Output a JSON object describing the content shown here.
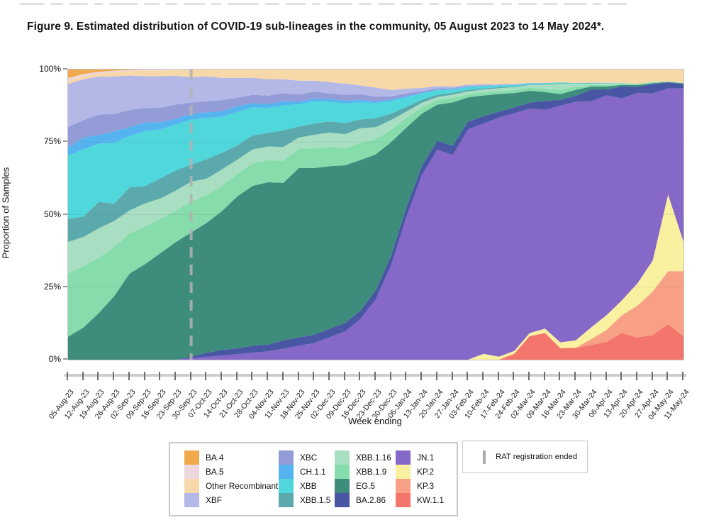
{
  "title": "Figure 9. Estimated distribution of COVID-19 sub-lineages in the community, 05 August 2023 to 14 May 2024*.",
  "annotation_legend": {
    "label": "RAT registration ended",
    "marker_color": "#ababab"
  },
  "chart_data": {
    "type": "area",
    "stacked": true,
    "normalized_to_percent": true,
    "title": "",
    "xlabel": "Week ending",
    "ylabel": "Proportion of Samples",
    "ylim": [
      0,
      100
    ],
    "y_ticks": [
      {
        "value": 0,
        "label": "0%"
      },
      {
        "value": 25,
        "label": "25%"
      },
      {
        "value": 50,
        "label": "50%"
      },
      {
        "value": 75,
        "label": "75%"
      },
      {
        "value": 100,
        "label": "100%"
      }
    ],
    "gridlines": [
      25,
      50,
      75
    ],
    "annotation": {
      "label": "RAT registration ended",
      "x_category": "30-Sep-23",
      "style": "dashed-vertical-line",
      "color": "#b3b3b3"
    },
    "categories": [
      "05-Aug-23",
      "12-Aug-23",
      "19-Aug-23",
      "26-Aug-23",
      "02-Sep-23",
      "09-Sep-23",
      "16-Sep-23",
      "23-Sep-23",
      "30-Sep-23",
      "07-Oct-23",
      "14-Oct-23",
      "21-Oct-23",
      "28-Oct-23",
      "04-Nov-23",
      "11-Nov-23",
      "18-Nov-23",
      "25-Nov-23",
      "02-Dec-23",
      "09-Dec-23",
      "16-Dec-23",
      "23-Dec-23",
      "30-Dec-23",
      "06-Jan-24",
      "13-Jan-24",
      "20-Jan-24",
      "27-Jan-24",
      "03-Feb-24",
      "10-Feb-24",
      "17-Feb-24",
      "24-Feb-24",
      "02-Mar-24",
      "09-Mar-24",
      "16-Mar-24",
      "23-Mar-24",
      "30-Mar-24",
      "06-Apr-24",
      "13-Apr-24",
      "20-Apr-24",
      "27-Apr-24",
      "04-May-24",
      "11-May-24"
    ],
    "series_stack_order_note": "bottom to top",
    "series": [
      {
        "name": "KW.1.1",
        "color": "#f4756b",
        "values": [
          0,
          0,
          0,
          0,
          0,
          0,
          0,
          0,
          0,
          0,
          0,
          0,
          0,
          0,
          0,
          0,
          0,
          0,
          0,
          0,
          0,
          0,
          0,
          0,
          0,
          0,
          0,
          0,
          0,
          2,
          8,
          9,
          4,
          4,
          5,
          6,
          9,
          7,
          8,
          12,
          8
        ]
      },
      {
        "name": "KP.3",
        "color": "#f8a086",
        "values": [
          0,
          0,
          0,
          0,
          0,
          0,
          0,
          0,
          0,
          0,
          0,
          0,
          0,
          0,
          0,
          0,
          0,
          0,
          0,
          0,
          0,
          0,
          0,
          0,
          0,
          0,
          0,
          0,
          0,
          0,
          0,
          0,
          0,
          0,
          2,
          4,
          6,
          10,
          14,
          18,
          22
        ]
      },
      {
        "name": "KP.2",
        "color": "#faf1a0",
        "values": [
          0,
          0,
          0,
          0,
          0,
          0,
          0,
          0,
          0,
          0,
          0,
          0,
          0,
          0,
          0,
          0,
          0,
          0,
          0,
          0,
          0,
          0,
          0,
          0,
          0,
          0,
          0,
          2,
          1,
          1,
          1,
          1.5,
          2,
          2.5,
          4,
          5,
          5,
          7,
          10,
          26,
          10
        ]
      },
      {
        "name": "JN.1",
        "color": "#8568c7",
        "values": [
          0,
          0,
          0,
          0,
          0,
          0,
          0,
          0,
          0.5,
          1,
          1.5,
          2,
          2.5,
          3,
          4,
          5,
          6,
          8,
          10,
          14,
          20,
          30,
          45,
          60,
          70,
          66,
          76,
          78,
          81,
          82,
          76,
          74,
          82,
          80,
          77,
          74,
          68,
          60,
          54,
          36,
          52
        ]
      },
      {
        "name": "BA.2.86",
        "color": "#4956a3",
        "values": [
          0,
          0,
          0,
          0,
          0,
          0,
          0,
          0,
          0.5,
          1.5,
          2,
          2,
          2.5,
          2.5,
          3,
          3,
          3,
          3,
          3,
          3,
          3,
          3,
          3,
          3,
          3,
          3,
          2.5,
          2.5,
          2,
          2,
          2,
          3,
          2,
          2,
          4,
          2,
          4,
          2,
          3,
          2,
          1.5
        ]
      },
      {
        "name": "EG.5",
        "color": "#3d8c7c",
        "values": [
          8,
          11,
          16,
          22,
          30,
          33,
          37,
          41,
          44,
          47,
          50,
          54,
          57,
          59,
          57,
          61,
          60,
          58,
          56,
          52,
          45,
          36,
          25,
          17,
          12,
          14,
          8,
          7,
          6,
          5,
          4,
          3,
          2,
          2,
          1,
          1,
          0.5,
          0.5,
          0.3,
          0.2,
          0.2
        ]
      },
      {
        "name": "XBB.1.9",
        "color": "#87dcac",
        "values": [
          22,
          21,
          19,
          17,
          14,
          13,
          12,
          11,
          11,
          10,
          9,
          8,
          8,
          8,
          8,
          7,
          7,
          7,
          6,
          6,
          5,
          4,
          3,
          2,
          1.5,
          1.5,
          1,
          1,
          1,
          1,
          1,
          1,
          1.5,
          1,
          0.5,
          0.5,
          0.3,
          0.2,
          0.2,
          0.1,
          0.1
        ]
      },
      {
        "name": "XBB.1.16",
        "color": "#a8dfc2",
        "values": [
          11,
          10,
          10,
          9,
          8,
          8,
          7,
          7,
          7,
          6,
          6,
          5,
          5,
          5,
          5,
          4,
          5,
          5,
          5,
          5,
          4,
          3,
          2,
          1.5,
          1,
          1,
          1,
          1,
          1,
          1,
          1,
          1.5,
          2,
          1,
          0.5,
          0.5,
          0.3,
          0.2,
          0.2,
          0.1,
          0.1
        ]
      },
      {
        "name": "XBB.1.5",
        "color": "#5ba9ac",
        "values": [
          8,
          7,
          9,
          6,
          8,
          6,
          7,
          7,
          6,
          7,
          6,
          5,
          5,
          5,
          6,
          4,
          4,
          4,
          4,
          3,
          3,
          2,
          1.5,
          1,
          0.8,
          0.6,
          0.5,
          0.4,
          0.3,
          0.3,
          0.2,
          0.2,
          0.2,
          0.1,
          0.1,
          0.1,
          0,
          0,
          0,
          0,
          0
        ]
      },
      {
        "name": "XBB",
        "color": "#4fd7dc",
        "values": [
          22,
          23,
          20,
          21,
          18,
          19,
          17,
          16,
          16,
          15,
          13,
          12,
          10,
          9,
          9,
          8,
          8,
          7,
          7,
          6,
          5,
          4,
          3,
          2,
          1.5,
          1,
          1,
          0.8,
          0.6,
          0.5,
          0.4,
          0.3,
          0.3,
          0.2,
          0.2,
          0.1,
          0.1,
          0,
          0,
          0,
          0
        ]
      },
      {
        "name": "CH.1.1",
        "color": "#55b4f0",
        "values": [
          3,
          4,
          3,
          4,
          3,
          3,
          2.5,
          2,
          2,
          2,
          2,
          2,
          1.5,
          1.5,
          1.5,
          1,
          1,
          1,
          1,
          0.8,
          0.6,
          0.5,
          0.4,
          0.3,
          0.2,
          0.2,
          0.1,
          0.1,
          0.1,
          0,
          0,
          0,
          0,
          0,
          0,
          0,
          0,
          0,
          0,
          0,
          0
        ]
      },
      {
        "name": "XBC",
        "color": "#949cd8",
        "values": [
          7,
          6,
          7,
          6,
          6,
          5,
          5,
          5,
          4,
          4,
          4,
          3,
          3,
          3,
          3,
          2.5,
          2.5,
          2,
          2,
          2,
          1.5,
          1,
          0.8,
          0.5,
          0.4,
          0.3,
          0.2,
          0.2,
          0.1,
          0.1,
          0,
          0,
          0,
          0,
          0,
          0,
          0,
          0,
          0,
          0,
          0
        ]
      },
      {
        "name": "XBF",
        "color": "#b3b8e6",
        "values": [
          15,
          14,
          13,
          13,
          12,
          11,
          11,
          10,
          9,
          9,
          8,
          7,
          6,
          6,
          5,
          5,
          4,
          4,
          4,
          3,
          3,
          2,
          1.5,
          1,
          0.8,
          0.5,
          0.4,
          0.3,
          0.2,
          0.2,
          0.1,
          0.1,
          0,
          0,
          0,
          0,
          0,
          0,
          0,
          0,
          0
        ]
      },
      {
        "name": "Other Recombinant",
        "color": "#f7d8a8",
        "values": [
          1,
          1,
          1,
          1.5,
          1.5,
          2,
          2,
          2,
          2.5,
          2.5,
          3,
          3,
          3,
          3.5,
          3.5,
          4,
          4,
          4.5,
          5,
          5.5,
          6,
          6.5,
          6,
          6,
          5.5,
          5.5,
          5,
          5,
          5,
          5,
          4.5,
          4.5,
          4.5,
          4.5,
          4.5,
          4.5,
          4.5,
          4.5,
          4,
          4,
          4.5
        ]
      },
      {
        "name": "BA.5",
        "color": "#edd6dc",
        "values": [
          1,
          0.8,
          0.6,
          0.5,
          0.4,
          0.3,
          0.3,
          0.2,
          0.2,
          0,
          0,
          0,
          0,
          0,
          0,
          0,
          0,
          0,
          0,
          0,
          0,
          0,
          0,
          0,
          0,
          0,
          0,
          0,
          0,
          0,
          0,
          0,
          0,
          0,
          0,
          0,
          0,
          0,
          0,
          0,
          0
        ]
      },
      {
        "name": "BA.4",
        "color": "#f0a94c",
        "values": [
          3,
          1.5,
          0.8,
          0.4,
          0.2,
          0,
          0,
          0,
          0,
          0,
          0,
          0,
          0,
          0,
          0,
          0,
          0,
          0,
          0,
          0,
          0,
          0,
          0,
          0,
          0,
          0,
          0,
          0,
          0,
          0,
          0,
          0,
          0,
          0,
          0,
          0,
          0,
          0,
          0,
          0,
          0
        ]
      }
    ],
    "legend_position": "bottom",
    "legend_columns": [
      [
        "BA.4",
        "BA.5",
        "Other Recombinant",
        "XBF"
      ],
      [
        "XBC",
        "CH.1.1",
        "XBB",
        "XBB.1.5"
      ],
      [
        "XBB.1.16",
        "XBB.1.9",
        "EG.5",
        "BA.2.86"
      ],
      [
        "JN.1",
        "KP.2",
        "KP.3",
        "KW.1.1"
      ]
    ]
  }
}
